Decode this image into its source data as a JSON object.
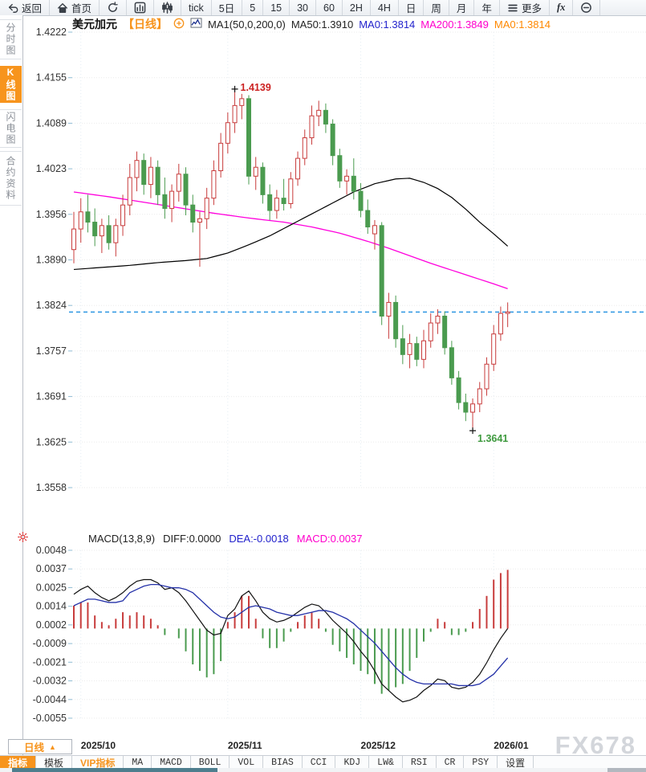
{
  "colors": {
    "accent_orange": "#f7941d",
    "up_red": "#c83c3c",
    "down_green": "#4a9b4f",
    "ma50_black": "#000000",
    "ma200_magenta": "#ff00dd",
    "diff_black": "#111111",
    "dea_blue": "#2431a8",
    "price_line_blue": "#1f8fe0",
    "annotation_red": "#cc2222",
    "annotation_green": "#3f9a3f",
    "header_blue": "#2222cc",
    "header_magenta": "#ff00cc",
    "header_orange": "#ff8800",
    "watermark_gray": "#d3d6db"
  },
  "toolbar": {
    "items": [
      {
        "label": "返回",
        "icon": "back"
      },
      {
        "label": "首页",
        "icon": "home"
      },
      {
        "label": "",
        "icon": "refresh"
      },
      {
        "label": "",
        "icon": "bar-chart"
      },
      {
        "label": "",
        "icon": "candlestick"
      },
      {
        "label": "tick",
        "icon": ""
      },
      {
        "label": "5日",
        "icon": ""
      },
      {
        "label": "5",
        "icon": ""
      },
      {
        "label": "15",
        "icon": ""
      },
      {
        "label": "30",
        "icon": ""
      },
      {
        "label": "60",
        "icon": ""
      },
      {
        "label": "2H",
        "icon": ""
      },
      {
        "label": "4H",
        "icon": ""
      },
      {
        "label": "日",
        "icon": ""
      },
      {
        "label": "周",
        "icon": ""
      },
      {
        "label": "月",
        "icon": ""
      },
      {
        "label": "年",
        "icon": ""
      },
      {
        "label": "更多",
        "icon": "menu"
      },
      {
        "label": "fx",
        "icon": ""
      },
      {
        "label": "",
        "icon": "zoom-out"
      }
    ]
  },
  "sidebar": {
    "items": [
      {
        "label": "分时图",
        "active": false
      },
      {
        "label": "K线图",
        "active": true
      },
      {
        "label": "闪电图",
        "active": false
      },
      {
        "label": "合约资料",
        "active": false
      }
    ]
  },
  "chart_header": {
    "symbol": "美元加元",
    "period_tag": "【日线】",
    "ma_settings": "MA1(50,0,200,0)",
    "ma50_label": "MA50:1.3910",
    "ma0_blue_label": "MA0:1.3814",
    "ma200_label": "MA200:1.3849",
    "ma0_orange_label": "MA0:1.3814"
  },
  "macd_header": {
    "title": "MACD(13,8,9)",
    "diff_label": "DIFF:0.0000",
    "dea_label": "DEA:-0.0018",
    "macd_label": "MACD:0.0037"
  },
  "bottom": {
    "period_label": "日线",
    "period_arrow": "▲",
    "watermark": "FX678",
    "tabs": [
      {
        "label": "指标",
        "style": "active"
      },
      {
        "label": "模板",
        "style": "cjk"
      },
      {
        "label": "VIP指标",
        "style": "viptab"
      },
      {
        "label": "MA",
        "style": "mono"
      },
      {
        "label": "MACD",
        "style": "mono"
      },
      {
        "label": "BOLL",
        "style": "mono"
      },
      {
        "label": "VOL",
        "style": "mono"
      },
      {
        "label": "BIAS",
        "style": "mono"
      },
      {
        "label": "CCI",
        "style": "mono"
      },
      {
        "label": "KDJ",
        "style": "mono"
      },
      {
        "label": "LW&",
        "style": "mono"
      },
      {
        "label": "RSI",
        "style": "mono"
      },
      {
        "label": "CR",
        "style": "mono"
      },
      {
        "label": "PSY",
        "style": "mono"
      },
      {
        "label": "设置",
        "style": "cjk"
      }
    ]
  },
  "chart_data": [
    {
      "type": "candlestick",
      "title": "美元加元 日线",
      "y_ticks": [
        "1.4222",
        "1.4155",
        "1.4089",
        "1.4023",
        "1.3956",
        "1.3890",
        "1.3824",
        "1.3757",
        "1.3691",
        "1.3625",
        "1.3558"
      ],
      "ylim": [
        1.3558,
        1.4222
      ],
      "current_price": 1.3814,
      "high_annotation": {
        "label": "1.4139",
        "index": 23,
        "price": 1.4139
      },
      "low_annotation": {
        "label": "1.3641",
        "index": 57,
        "price": 1.3641
      },
      "month_ticks": [
        {
          "label": "2025/10",
          "index": 1
        },
        {
          "label": "2025/11",
          "index": 22
        },
        {
          "label": "2025/12",
          "index": 41
        },
        {
          "label": "2026/01",
          "index": 60
        }
      ],
      "candles": [
        [
          1.3905,
          1.396,
          1.3885,
          1.3935
        ],
        [
          1.3935,
          1.398,
          1.3915,
          1.396
        ],
        [
          1.396,
          1.3985,
          1.393,
          1.3945
        ],
        [
          1.3945,
          1.3965,
          1.391,
          1.3925
        ],
        [
          1.3925,
          1.395,
          1.39,
          1.394
        ],
        [
          1.394,
          1.3955,
          1.3905,
          1.3915
        ],
        [
          1.3915,
          1.395,
          1.3895,
          1.394
        ],
        [
          1.394,
          1.3985,
          1.3925,
          1.397
        ],
        [
          1.397,
          1.403,
          1.3955,
          1.401
        ],
        [
          1.401,
          1.4048,
          1.399,
          1.4035
        ],
        [
          1.4035,
          1.4045,
          1.3985,
          1.4
        ],
        [
          1.4,
          1.404,
          1.398,
          1.4025
        ],
        [
          1.4025,
          1.4035,
          1.397,
          1.3985
        ],
        [
          1.3985,
          1.401,
          1.395,
          1.3965
        ],
        [
          1.3965,
          1.4,
          1.3945,
          1.399
        ],
        [
          1.399,
          1.403,
          1.3975,
          1.4015
        ],
        [
          1.4015,
          1.4025,
          1.3955,
          1.397
        ],
        [
          1.397,
          1.3985,
          1.393,
          1.3945
        ],
        [
          1.3945,
          1.396,
          1.388,
          1.395
        ],
        [
          1.395,
          1.3995,
          1.3935,
          1.398
        ],
        [
          1.398,
          1.4035,
          1.397,
          1.402
        ],
        [
          1.402,
          1.4075,
          1.401,
          1.406
        ],
        [
          1.406,
          1.4105,
          1.4045,
          1.409
        ],
        [
          1.409,
          1.4139,
          1.4075,
          1.4115
        ],
        [
          1.4115,
          1.4132,
          1.4095,
          1.4125
        ],
        [
          1.4125,
          1.413,
          1.4,
          1.4012
        ],
        [
          1.4012,
          1.404,
          1.3992,
          1.4025
        ],
        [
          1.4025,
          1.4032,
          1.3972,
          1.3985
        ],
        [
          1.3985,
          1.4,
          1.3948,
          1.3962
        ],
        [
          1.3962,
          1.3992,
          1.395,
          1.398
        ],
        [
          1.398,
          1.4008,
          1.3962,
          1.3972
        ],
        [
          1.3972,
          1.4018,
          1.3965,
          1.4008
        ],
        [
          1.4008,
          1.4048,
          1.3998,
          1.4038
        ],
        [
          1.4038,
          1.408,
          1.4028,
          1.4068
        ],
        [
          1.4068,
          1.4115,
          1.4058,
          1.41
        ],
        [
          1.41,
          1.4122,
          1.4085,
          1.4108
        ],
        [
          1.4108,
          1.4118,
          1.4075,
          1.4088
        ],
        [
          1.4088,
          1.4095,
          1.4028,
          1.4042
        ],
        [
          1.4042,
          1.4052,
          1.3995,
          1.4005
        ],
        [
          1.4005,
          1.4022,
          1.3985,
          1.4012
        ],
        [
          1.4012,
          1.4038,
          1.3978,
          1.399
        ],
        [
          1.399,
          1.4002,
          1.3952,
          1.3962
        ],
        [
          1.3962,
          1.3978,
          1.3928,
          1.3938
        ],
        [
          1.3928,
          1.3948,
          1.3905,
          1.394
        ],
        [
          1.394,
          1.3945,
          1.3795,
          1.3808
        ],
        [
          1.3808,
          1.3842,
          1.3775,
          1.3828
        ],
        [
          1.3828,
          1.3838,
          1.3762,
          1.3775
        ],
        [
          1.3775,
          1.3795,
          1.3738,
          1.3752
        ],
        [
          1.3752,
          1.3782,
          1.3732,
          1.3768
        ],
        [
          1.3768,
          1.3778,
          1.3735,
          1.3745
        ],
        [
          1.3745,
          1.3788,
          1.3732,
          1.3772
        ],
        [
          1.3772,
          1.3812,
          1.3762,
          1.3798
        ],
        [
          1.3798,
          1.3818,
          1.3782,
          1.3808
        ],
        [
          1.3808,
          1.3815,
          1.3752,
          1.3762
        ],
        [
          1.3762,
          1.3772,
          1.3708,
          1.3718
        ],
        [
          1.3718,
          1.3728,
          1.3672,
          1.3682
        ],
        [
          1.3682,
          1.3695,
          1.3655,
          1.3668
        ],
        [
          1.3668,
          1.3688,
          1.3641,
          1.368
        ],
        [
          1.368,
          1.3712,
          1.3668,
          1.3702
        ],
        [
          1.3702,
          1.3748,
          1.3692,
          1.3738
        ],
        [
          1.3738,
          1.3795,
          1.3728,
          1.3782
        ],
        [
          1.3782,
          1.3822,
          1.3772,
          1.3812
        ],
        [
          1.3812,
          1.3828,
          1.3792,
          1.3814
        ]
      ],
      "ma50_points": [
        [
          0,
          1.3876
        ],
        [
          4,
          1.3879
        ],
        [
          8,
          1.3882
        ],
        [
          12,
          1.3886
        ],
        [
          16,
          1.3889
        ],
        [
          19,
          1.3892
        ],
        [
          22,
          1.39
        ],
        [
          25,
          1.3912
        ],
        [
          28,
          1.3925
        ],
        [
          31,
          1.3941
        ],
        [
          34,
          1.3957
        ],
        [
          37,
          1.3973
        ],
        [
          40,
          1.3989
        ],
        [
          43,
          1.4001
        ],
        [
          46,
          1.4008
        ],
        [
          48,
          1.4009
        ],
        [
          50,
          1.4003
        ],
        [
          52,
          1.3994
        ],
        [
          54,
          1.3981
        ],
        [
          56,
          1.3964
        ],
        [
          58,
          1.3945
        ],
        [
          60,
          1.3928
        ],
        [
          62,
          1.391
        ]
      ],
      "ma200_points": [
        [
          0,
          1.3989
        ],
        [
          5,
          1.3982
        ],
        [
          10,
          1.3974
        ],
        [
          15,
          1.3966
        ],
        [
          20,
          1.3958
        ],
        [
          25,
          1.3951
        ],
        [
          30,
          1.3945
        ],
        [
          34,
          1.3938
        ],
        [
          38,
          1.3929
        ],
        [
          42,
          1.3917
        ],
        [
          45,
          1.3907
        ],
        [
          48,
          1.3896
        ],
        [
          51,
          1.3885
        ],
        [
          54,
          1.3875
        ],
        [
          57,
          1.3865
        ],
        [
          60,
          1.3855
        ],
        [
          62,
          1.3848
        ]
      ]
    },
    {
      "type": "macd",
      "params": "MACD(13,8,9)",
      "y_ticks": [
        "0.0048",
        "0.0037",
        "0.0025",
        "0.0014",
        "0.0002",
        "-0.0009",
        "-0.0021",
        "-0.0032",
        "-0.0044",
        "-0.0055"
      ],
      "ylim": [
        -0.0055,
        0.0048
      ],
      "diff": [
        0.0021,
        0.0024,
        0.0026,
        0.0022,
        0.0019,
        0.0017,
        0.0019,
        0.0022,
        0.0026,
        0.0029,
        0.003,
        0.003,
        0.0028,
        0.0024,
        0.0025,
        0.0022,
        0.0017,
        0.0011,
        0.0005,
        -0.0001,
        -0.0004,
        -0.0003,
        0.0008,
        0.0012,
        0.002,
        0.0023,
        0.0017,
        0.001,
        0.0006,
        0.0004,
        0.0005,
        0.0007,
        0.001,
        0.0013,
        0.0015,
        0.0014,
        0.001,
        0.0005,
        0.0001,
        -0.0003,
        -0.0008,
        -0.0014,
        -0.0019,
        -0.0026,
        -0.0034,
        -0.0038,
        -0.0042,
        -0.0045,
        -0.0044,
        -0.0042,
        -0.0038,
        -0.0035,
        -0.0031,
        -0.0032,
        -0.0036,
        -0.0037,
        -0.0036,
        -0.0033,
        -0.0028,
        -0.0021,
        -0.0013,
        -0.0006,
        0.0
      ],
      "dea": [
        0.0014,
        0.0016,
        0.0018,
        0.0018,
        0.0017,
        0.0016,
        0.0016,
        0.0017,
        0.0022,
        0.0024,
        0.0026,
        0.0027,
        0.0027,
        0.0026,
        0.0025,
        0.0025,
        0.0024,
        0.0022,
        0.0018,
        0.0014,
        0.001,
        0.0007,
        0.0006,
        0.0007,
        0.001,
        0.0013,
        0.0014,
        0.0013,
        0.0012,
        0.001,
        0.0009,
        0.0008,
        0.0008,
        0.0009,
        0.001,
        0.0011,
        0.0011,
        0.001,
        0.0008,
        0.0006,
        0.0003,
        -0.0001,
        -0.0005,
        -0.0009,
        -0.0014,
        -0.0019,
        -0.0024,
        -0.0028,
        -0.0031,
        -0.0033,
        -0.0034,
        -0.0034,
        -0.0034,
        -0.0034,
        -0.0034,
        -0.0035,
        -0.0035,
        -0.0035,
        -0.0034,
        -0.0031,
        -0.0028,
        -0.0023,
        -0.0018
      ],
      "histogram_formula": "2*(diff-dea)"
    }
  ]
}
